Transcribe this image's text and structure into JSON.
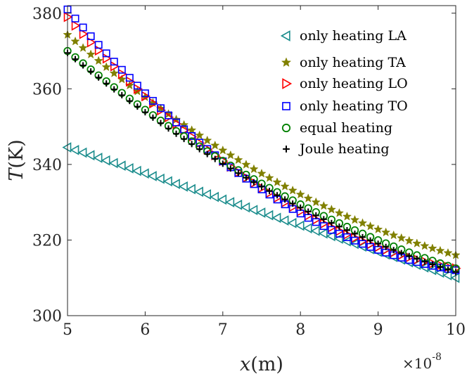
{
  "chart_data": {
    "type": "scatter",
    "xlabel_var": "x",
    "xlabel_unit": "(m)",
    "ylabel_var": "T",
    "ylabel_unit": "(K)",
    "x_multiplier_base": "×10",
    "x_multiplier_exp": "-8",
    "xlim": [
      5,
      10
    ],
    "ylim": [
      300,
      382
    ],
    "x_ticks": [
      5,
      6,
      7,
      8,
      9,
      10
    ],
    "y_ticks": [
      300,
      320,
      340,
      360,
      380
    ],
    "x_tick_labels": [
      "5",
      "6",
      "7",
      "8",
      "9",
      "10"
    ],
    "y_tick_labels": [
      "300",
      "320",
      "340",
      "360",
      "380"
    ],
    "n_points": 51,
    "series": [
      {
        "name": "only heating LA",
        "marker": "triangle-left",
        "color": "#1a8c8c",
        "T_start": 344.5,
        "T_end": 310.0,
        "curvature": 0.0
      },
      {
        "name": "only heating TA",
        "marker": "star",
        "color": "#808000",
        "T_start": 374.3,
        "T_end": 316.0,
        "curvature": 0.26
      },
      {
        "name": "only heating LO",
        "marker": "triangle-right",
        "color": "#ff0000",
        "T_start": 379.0,
        "T_end": 312.5,
        "curvature": 0.36
      },
      {
        "name": "only heating TO",
        "marker": "square",
        "color": "#0000ff",
        "T_start": 381.0,
        "T_end": 312.0,
        "curvature": 0.38
      },
      {
        "name": "equal heating",
        "marker": "circle",
        "color": "#008000",
        "T_start": 370.0,
        "T_end": 312.5,
        "curvature": 0.22
      },
      {
        "name": "Joule heating",
        "marker": "plus",
        "color": "#000000",
        "T_start": 369.5,
        "T_end": 311.5,
        "curvature": 0.22
      }
    ]
  }
}
